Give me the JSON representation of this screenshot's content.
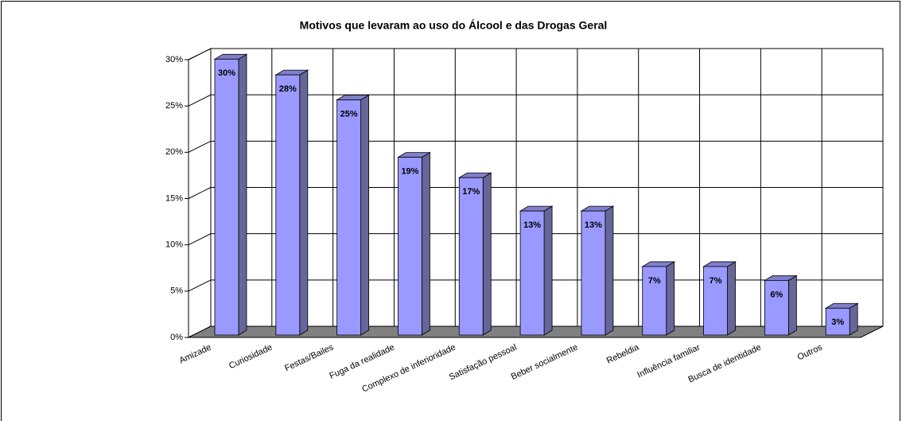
{
  "chart_data": {
    "type": "bar3d",
    "title": "Motivos que levaram ao uso do Álcool e das Drogas Geral",
    "categories": [
      "Amizade",
      "Curiosidade",
      "Festas/Bailes",
      "Fuga da realidade",
      "Complexo de inferioridade",
      "Satisfação pessoal",
      "Beber socialmente",
      "Rebeldia",
      "Influência familiar",
      "Busca de identidade",
      "Outros"
    ],
    "values": [
      29.8,
      28.1,
      25.4,
      19.2,
      17.0,
      13.4,
      13.4,
      7.4,
      7.4,
      5.9,
      2.9
    ],
    "value_labels": [
      "30%",
      "28%",
      "25%",
      "19%",
      "17%",
      "13%",
      "13%",
      "7%",
      "7%",
      "6%",
      "3%"
    ],
    "color": "#9999ff",
    "ylim": [
      0,
      30
    ],
    "yticks": [
      {
        "value": 0,
        "label": "0%"
      },
      {
        "value": 5,
        "label": "5%"
      },
      {
        "value": 10,
        "label": "10%"
      },
      {
        "value": 15,
        "label": "15%"
      },
      {
        "value": 20,
        "label": "20%"
      },
      {
        "value": 25,
        "label": "25%"
      },
      {
        "value": 30,
        "label": "30%"
      }
    ],
    "grid": true
  }
}
